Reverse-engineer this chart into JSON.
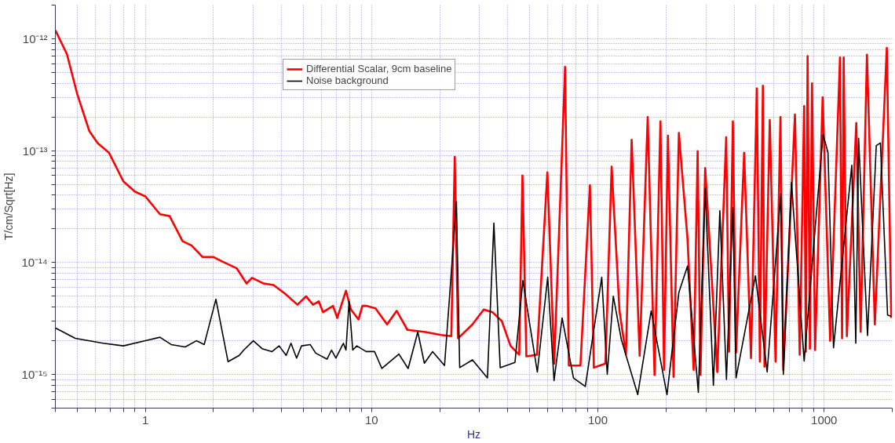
{
  "chart_data": {
    "type": "line",
    "xlabel": "Hz",
    "ylabel": "T/cm/Sqrt[Hz]",
    "log": "xy",
    "grid": true,
    "legend": "top",
    "line_style": "solid",
    "xlim": [
      0.4,
      2000
    ],
    "ylim": [
      5e-16,
      2e-12
    ],
    "xticks": [
      {
        "value": 0.4,
        "label": null
      },
      {
        "value": 0.5,
        "label": null
      },
      {
        "value": 0.6,
        "label": null
      },
      {
        "value": 0.7,
        "label": null
      },
      {
        "value": 0.8,
        "label": null
      },
      {
        "value": 0.9,
        "label": null
      },
      1,
      {
        "value": 2,
        "label": null
      },
      {
        "value": 3,
        "label": null
      },
      {
        "value": 4,
        "label": null
      },
      {
        "value": 5,
        "label": null
      },
      {
        "value": 6,
        "label": null
      },
      {
        "value": 7,
        "label": null
      },
      {
        "value": 8,
        "label": null
      },
      {
        "value": 9,
        "label": null
      },
      10,
      {
        "value": 20,
        "label": null
      },
      {
        "value": 30,
        "label": null
      },
      {
        "value": 40,
        "label": null
      },
      {
        "value": 50,
        "label": null
      },
      {
        "value": 60,
        "label": null
      },
      {
        "value": 70,
        "label": null
      },
      {
        "value": 80,
        "label": null
      },
      {
        "value": 90,
        "label": null
      },
      100,
      {
        "value": 200,
        "label": null
      },
      {
        "value": 300,
        "label": null
      },
      {
        "value": 400,
        "label": null
      },
      {
        "value": 500,
        "label": null
      },
      {
        "value": 600,
        "label": null
      },
      {
        "value": 700,
        "label": null
      },
      {
        "value": 800,
        "label": null
      },
      {
        "value": 900,
        "label": null
      },
      1000,
      {
        "value": 2000,
        "label": null
      }
    ],
    "yticks": [
      {
        "value": 5e-16,
        "label": null
      },
      {
        "value": 6e-16,
        "label": null
      },
      {
        "value": 7e-16,
        "label": null
      },
      {
        "value": 8e-16,
        "label": null
      },
      {
        "value": 9e-16,
        "label": null
      },
      {
        "value": 1e-15,
        "label": "10⁻¹⁵"
      },
      {
        "value": 2e-15,
        "label": null
      },
      {
        "value": 3e-15,
        "label": null
      },
      {
        "value": 4e-15,
        "label": null
      },
      {
        "value": 5e-15,
        "label": null
      },
      {
        "value": 6e-15,
        "label": null
      },
      {
        "value": 7e-15,
        "label": null
      },
      {
        "value": 8e-15,
        "label": null
      },
      {
        "value": 9e-15,
        "label": null
      },
      {
        "value": 1e-14,
        "label": "10⁻¹⁴"
      },
      {
        "value": 2e-14,
        "label": null
      },
      {
        "value": 3e-14,
        "label": null
      },
      {
        "value": 4e-14,
        "label": null
      },
      {
        "value": 5e-14,
        "label": null
      },
      {
        "value": 6e-14,
        "label": null
      },
      {
        "value": 7e-14,
        "label": null
      },
      {
        "value": 8e-14,
        "label": null
      },
      {
        "value": 9e-14,
        "label": null
      },
      {
        "value": 1e-13,
        "label": "10⁻¹³"
      },
      {
        "value": 2e-13,
        "label": null
      },
      {
        "value": 3e-13,
        "label": null
      },
      {
        "value": 4e-13,
        "label": null
      },
      {
        "value": 5e-13,
        "label": null
      },
      {
        "value": 6e-13,
        "label": null
      },
      {
        "value": 7e-13,
        "label": null
      },
      {
        "value": 8e-13,
        "label": null
      },
      {
        "value": 9e-13,
        "label": null
      },
      {
        "value": 1e-12,
        "label": "10⁻¹²"
      },
      {
        "value": 2e-12,
        "label": null
      }
    ],
    "series": [
      {
        "name": "Differential Scalar, 9cm baseline",
        "color": "#ff0000",
        "x": [
          0.4,
          0.45,
          0.5,
          0.565,
          0.615,
          0.69,
          0.8,
          0.9,
          1.0,
          1.16,
          1.28,
          1.46,
          1.6,
          1.79,
          2.0,
          2.19,
          2.53,
          2.8,
          2.96,
          3.33,
          3.68,
          4.13,
          4.7,
          5.13,
          5.51,
          5.84,
          6.1,
          6.75,
          7.05,
          7.7,
          8.1,
          8.75,
          9.1,
          9.45,
          10.4,
          11.7,
          12.9,
          14.4,
          17.1,
          20.3,
          22.5,
          23.3,
          24.1,
          27.9,
          31.3,
          34.2,
          37.6,
          41.1,
          44.9,
          46.4,
          48.3,
          53.8,
          59.8,
          64.1,
          69,
          71.6,
          74.4,
          83.7,
          92.2,
          96,
          108,
          115,
          124.6,
          133,
          141,
          153,
          166,
          178,
          189,
          196,
          204,
          216,
          228,
          249,
          265,
          276,
          284,
          298,
          337,
          369,
          380,
          395,
          408,
          443,
          475,
          504,
          520,
          536,
          545,
          575,
          610,
          641,
          660,
          743,
          780,
          816,
          830,
          845,
          865,
          884,
          912,
          985,
          1063,
          1175,
          1200,
          1220,
          1260,
          1387,
          1450,
          1546,
          1675,
          1892,
          1980
        ],
        "values": [
          1.19e-12,
          7.3e-13,
          3.2e-13,
          1.5e-13,
          1.17e-13,
          9.6e-14,
          5.3e-14,
          4.3e-14,
          3.9e-14,
          2.7e-14,
          2.6e-14,
          1.55e-14,
          1.42e-14,
          1.12e-14,
          1.12e-14,
          1.02e-14,
          8.9e-15,
          6.5e-15,
          7.3e-15,
          6.5e-15,
          6.3e-15,
          5.3e-15,
          4.2e-15,
          5e-15,
          4.2e-15,
          4.5e-15,
          3.6e-15,
          4.1e-15,
          3.2e-15,
          5.6e-15,
          3.8e-15,
          3.1e-15,
          4.1e-15,
          4.1e-15,
          3.9e-15,
          2.8e-15,
          3.7e-15,
          2.5e-15,
          2.4e-15,
          2.25e-15,
          2.2e-15,
          8.8e-14,
          2.1e-15,
          2.8e-15,
          3.8e-15,
          3.6e-15,
          3e-15,
          1.8e-15,
          1.5e-15,
          6e-14,
          1.45e-15,
          1.5e-15,
          6.4e-14,
          1.25e-15,
          7e-14,
          5.6e-13,
          1.2e-15,
          1.2e-15,
          4.9e-14,
          1.15e-15,
          1.25e-15,
          7.2e-14,
          3.7e-15,
          1.5e-15,
          1.25e-13,
          1.47e-15,
          2e-13,
          9.9e-16,
          1.83e-13,
          1.1e-15,
          1.36e-13,
          9.5e-16,
          1.44e-13,
          1.62e-14,
          1.1e-15,
          9.9e-14,
          9.9e-16,
          7e-14,
          1.05e-15,
          1.32e-13,
          1.6e-15,
          1.83e-13,
          1.57e-15,
          9.6e-14,
          1.4e-15,
          3.6e-13,
          1.3e-15,
          3.8e-13,
          1.17e-15,
          1.88e-13,
          1.3e-15,
          2e-13,
          1.1e-15,
          2.1e-13,
          1.5e-15,
          2.5e-13,
          1.6e-15,
          7e-13,
          1.7e-15,
          4e-13,
          1.65e-15,
          3e-13,
          2e-15,
          6.8e-13,
          2.1e-15,
          6.8e-13,
          2.2e-15,
          1.77e-13,
          2.4e-15,
          7.2e-13,
          2.8e-15,
          8.3e-13,
          3.2e-15
        ]
      },
      {
        "name": "Noise background",
        "color": "#000000",
        "x": [
          0.4,
          0.49,
          0.65,
          0.8,
          1.0,
          1.16,
          1.3,
          1.5,
          1.68,
          1.82,
          2.05,
          2.32,
          2.6,
          2.72,
          3.0,
          3.28,
          3.63,
          3.9,
          4.19,
          4.4,
          4.66,
          4.9,
          5.35,
          5.66,
          6.35,
          6.65,
          6.95,
          7.5,
          7.7,
          7.95,
          8.25,
          8.6,
          9.45,
          10.3,
          11.1,
          13.2,
          14.5,
          16.0,
          17.1,
          18.6,
          21,
          23.7,
          24.5,
          27.9,
          32.5,
          34.7,
          37,
          43,
          46.6,
          54,
          60,
          64,
          69.5,
          78,
          88,
          104,
          110,
          117,
          127,
          150,
          172,
          202,
          228,
          249,
          278,
          298,
          324,
          346,
          370,
          395,
          408,
          497,
          560,
          643,
          660,
          717,
          816,
          893,
          989,
          1040,
          1100,
          1325,
          1380,
          1420,
          1555,
          1700,
          1773,
          1907,
          1980
        ],
        "values": [
          2.6e-15,
          2.1e-15,
          1.9e-15,
          1.8e-15,
          2e-15,
          2.15e-15,
          1.85e-15,
          1.76e-15,
          2e-15,
          1.85e-15,
          4.7e-15,
          1.3e-15,
          1.48e-15,
          1.65e-15,
          2e-15,
          1.7e-15,
          1.6e-15,
          1.8e-15,
          1.48e-15,
          1.9e-15,
          1.4e-15,
          1.8e-15,
          1.85e-15,
          1.55e-15,
          1.37e-15,
          1.65e-15,
          1.4e-15,
          1.9e-15,
          1.65e-15,
          4.5e-15,
          1.65e-15,
          1.8e-15,
          1.6e-15,
          1.6e-15,
          1.13e-15,
          1.52e-15,
          1.13e-15,
          2.4e-15,
          1.26e-15,
          1.6e-15,
          1.2e-15,
          3.5e-14,
          1.15e-15,
          1.35e-15,
          9.3e-16,
          2.25e-14,
          1.15e-15,
          1.28e-15,
          6.9e-15,
          1.05e-15,
          7.4e-15,
          8.8e-16,
          3.2e-15,
          9.3e-16,
          7.8e-16,
          7.4e-15,
          1e-15,
          5e-15,
          2.04e-15,
          6.6e-16,
          3.7e-15,
          6.6e-16,
          5.4e-15,
          9.3e-15,
          6.9e-16,
          4.6e-14,
          8e-16,
          2.9e-14,
          9e-16,
          3.1e-14,
          9.3e-16,
          7.6e-15,
          1.05e-15,
          4.1e-14,
          1e-15,
          5.2e-14,
          1.32e-15,
          1.2e-14,
          1.4e-13,
          9.6e-14,
          1.73e-15,
          7.4e-14,
          1.9e-15,
          1.29e-13,
          2.23e-15,
          1.11e-13,
          1.17e-13,
          3.4e-15,
          3.3e-15
        ]
      }
    ]
  }
}
